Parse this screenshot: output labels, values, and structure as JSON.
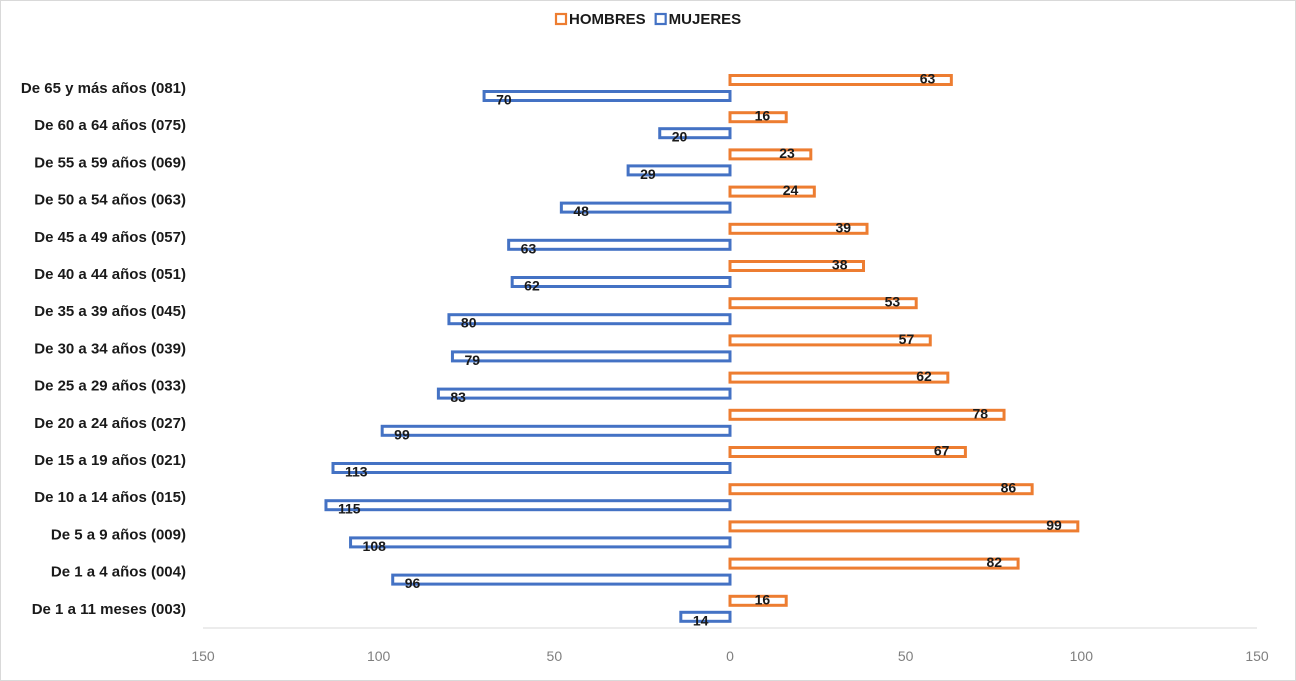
{
  "chart_data": {
    "type": "bar",
    "orientation": "horizontal",
    "title": "",
    "xlabel": "",
    "ylabel": "",
    "xlim": [
      -150,
      150
    ],
    "xticks": [
      -150,
      -100,
      -50,
      0,
      50,
      100,
      150
    ],
    "xtick_labels": [
      "150",
      "100",
      "50",
      "0",
      "50",
      "100",
      "150"
    ],
    "grid": false,
    "legend": "top-center",
    "categories": [
      "De 65 y más años (081)",
      "De 60 a 64 años (075)",
      "De 55 a 59 años (069)",
      "De 50 a 54 años (063)",
      "De 45 a 49 años (057)",
      "De 40 a 44 años (051)",
      "De 35 a 39 años (045)",
      "De 30 a 34 años (039)",
      "De 25 a 29 años (033)",
      "De 20 a 24 años (027)",
      "De 15 a 19 años (021)",
      "De 10 a 14 años (015)",
      "De 5 a 9 años (009)",
      "De 1 a 4 años (004)",
      "De 1 a 11 meses (003)"
    ],
    "series": [
      {
        "name": "HOMBRES",
        "color": "#ed7d31",
        "direction": "right",
        "values": [
          63,
          16,
          23,
          24,
          39,
          38,
          53,
          57,
          62,
          78,
          67,
          86,
          99,
          82,
          16
        ]
      },
      {
        "name": "MUJERES",
        "color": "#4472c4",
        "direction": "left",
        "values": [
          70,
          20,
          29,
          48,
          63,
          62,
          80,
          79,
          83,
          99,
          113,
          115,
          108,
          96,
          14
        ]
      }
    ]
  }
}
